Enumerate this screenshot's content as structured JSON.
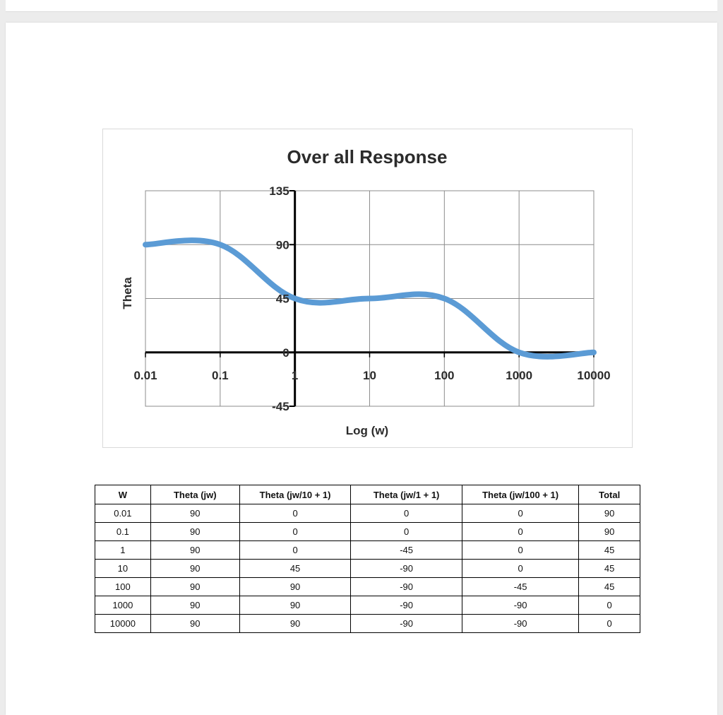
{
  "chart_data": {
    "type": "line",
    "title": "Over all Response",
    "xlabel": "Log (w)",
    "ylabel": "Theta",
    "x_scale": "log",
    "x": [
      0.01,
      0.1,
      1,
      10,
      100,
      1000,
      10000
    ],
    "xticks": [
      "0.01",
      "0.1",
      "1",
      "10",
      "100",
      "1000",
      "10000"
    ],
    "yticks": [
      "135",
      "90",
      "45",
      "0",
      "-45"
    ],
    "ylim": [
      -45,
      135
    ],
    "grid": true,
    "series": [
      {
        "values": [
          90,
          90,
          45,
          45,
          45,
          0,
          0
        ]
      }
    ],
    "line_color": "#5b9bd5"
  },
  "table": {
    "headers": [
      "W",
      "Theta (jw)",
      "Theta (jw/10 + 1)",
      "Theta (jw/1 + 1)",
      "Theta (jw/100 + 1)",
      "Total"
    ],
    "rows": [
      [
        "0.01",
        "90",
        "0",
        "0",
        "0",
        "90"
      ],
      [
        "0.1",
        "90",
        "0",
        "0",
        "0",
        "90"
      ],
      [
        "1",
        "90",
        "0",
        "-45",
        "0",
        "45"
      ],
      [
        "10",
        "90",
        "45",
        "-90",
        "0",
        "45"
      ],
      [
        "100",
        "90",
        "90",
        "-90",
        "-45",
        "45"
      ],
      [
        "1000",
        "90",
        "90",
        "-90",
        "-90",
        "0"
      ],
      [
        "10000",
        "90",
        "90",
        "-90",
        "-90",
        "0"
      ]
    ]
  }
}
